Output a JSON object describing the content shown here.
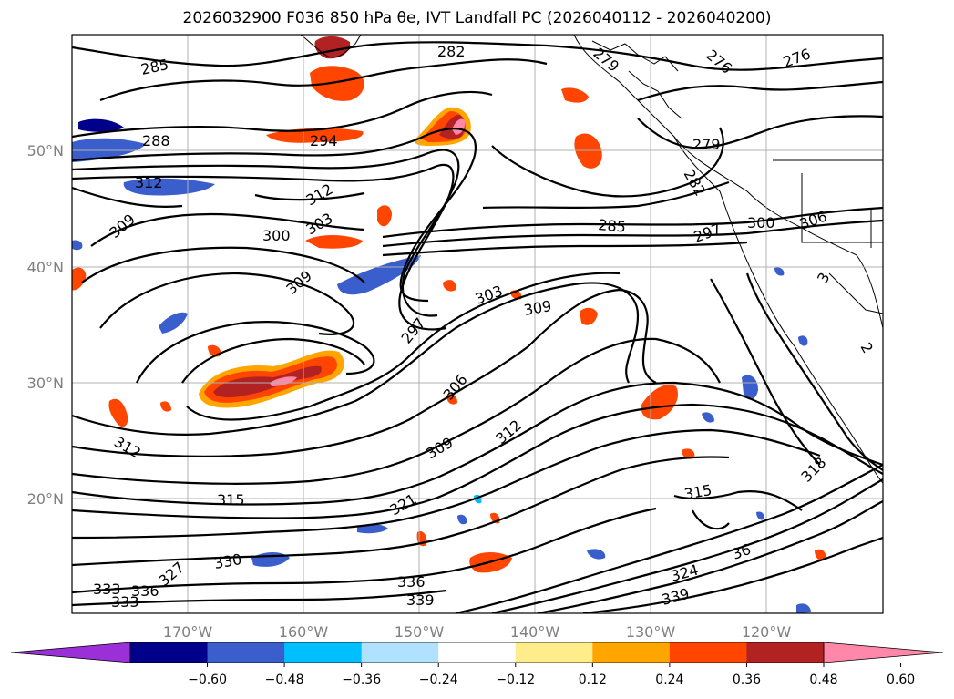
{
  "title": "2026032900 F036 850 hPa θe, IVT Landfall PC (2026040112 - 2026040200)",
  "latitude_labels": [
    "50°N",
    "40°N",
    "30°N",
    "20°N"
  ],
  "longitude_labels": [
    "170°W",
    "160°W",
    "150°W",
    "140°W",
    "130°W",
    "120°W"
  ],
  "colorbar": {
    "ticks": [
      "−0.60",
      "−0.48",
      "−0.36",
      "−0.24",
      "−0.12",
      "0.12",
      "0.24",
      "0.36",
      "0.48",
      "0.60"
    ],
    "under_color": "#9b30d9",
    "over_color": "#ff88aa",
    "colors": [
      "#00008b",
      "#3a5fcd",
      "#00bfff",
      "#b0e2ff",
      "#ffffff",
      "#ffec8b",
      "#ffa500",
      "#ff4500",
      "#b22222"
    ]
  },
  "contour_labels": [
    "285",
    "282",
    "276",
    "276",
    "279",
    "288",
    "294",
    "279",
    "282",
    "312",
    "312",
    "309",
    "303",
    "300",
    "285",
    "297",
    "300",
    "306",
    "309",
    "303",
    "309",
    "297",
    "306",
    "312",
    "309",
    "312",
    "315",
    "315",
    "318",
    "321",
    "330",
    "327",
    "333",
    "336",
    "336",
    "339",
    "333",
    "324",
    "339",
    "36",
    "3",
    "2"
  ],
  "colors": {
    "contour": "#000000",
    "grid": "#b0b0b0",
    "coast": "#000000",
    "land_fill": "#ffffff"
  }
}
